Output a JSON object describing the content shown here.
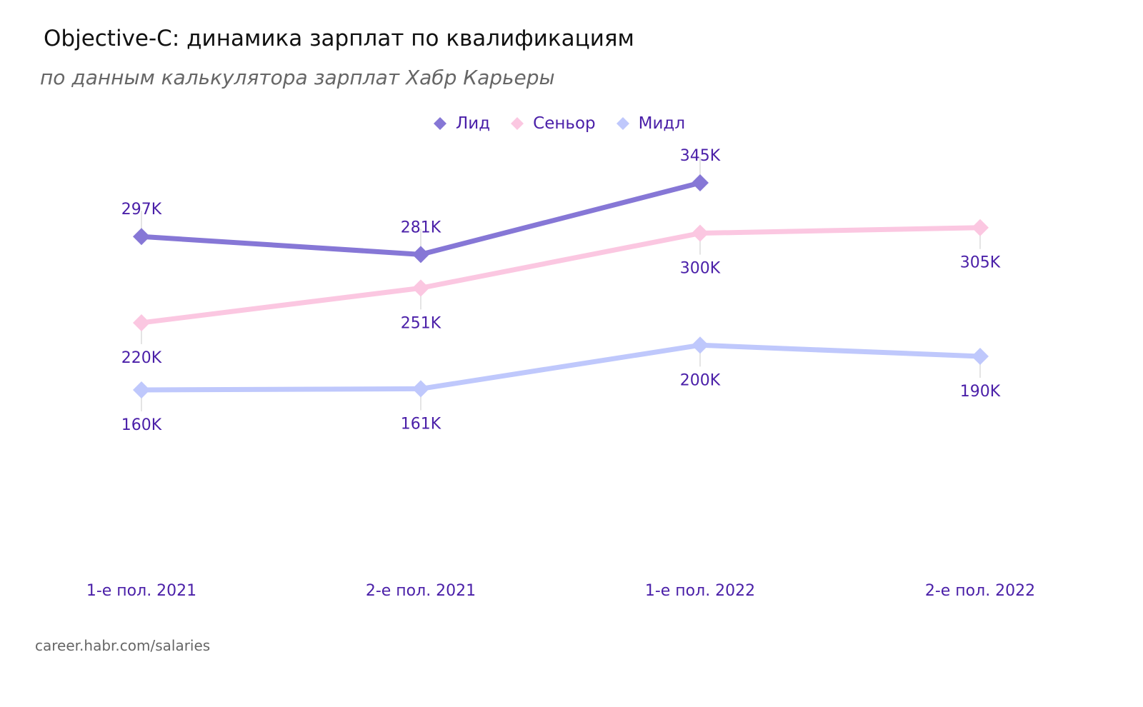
{
  "header": {
    "title": "Objective-C: динамика зарплат по квалификациям",
    "subtitle": "по данным калькулятора зарплат Хабр Карьеры"
  },
  "legend": {
    "items": [
      {
        "label": "Лид",
        "color": "#8677d6"
      },
      {
        "label": "Сеньор",
        "color": "#fbc7e1"
      },
      {
        "label": "Мидл",
        "color": "#bfc8fc"
      }
    ]
  },
  "footer": {
    "source": "career.habr.com/salaries"
  },
  "chart_data": {
    "type": "line",
    "title": "Objective-C: динамика зарплат по квалификациям",
    "subtitle": "по данным калькулятора зарплат Хабр Карьеры",
    "xlabel": "",
    "ylabel": "",
    "categories": [
      "1-е пол. 2021",
      "2-е пол. 2021",
      "1-е пол. 2022",
      "2-е пол. 2022"
    ],
    "series": [
      {
        "name": "Лид",
        "color": "#8677d6",
        "values": [
          297,
          281,
          345,
          null
        ],
        "labels": [
          "297K",
          "281K",
          "345K",
          null
        ],
        "label_position": "above"
      },
      {
        "name": "Сеньор",
        "color": "#fbc7e1",
        "values": [
          220,
          251,
          300,
          305
        ],
        "labels": [
          "220K",
          "251K",
          "300K",
          "305K"
        ],
        "label_position": "below"
      },
      {
        "name": "Мидл",
        "color": "#bfc8fc",
        "values": [
          160,
          161,
          200,
          190
        ],
        "labels": [
          "160K",
          "161K",
          "200K",
          "190K"
        ],
        "label_position": "below"
      }
    ],
    "units": "тыс. руб.",
    "marker": "diamond",
    "grid": false,
    "y_axis_visible": false,
    "legend_position": "top-center"
  }
}
